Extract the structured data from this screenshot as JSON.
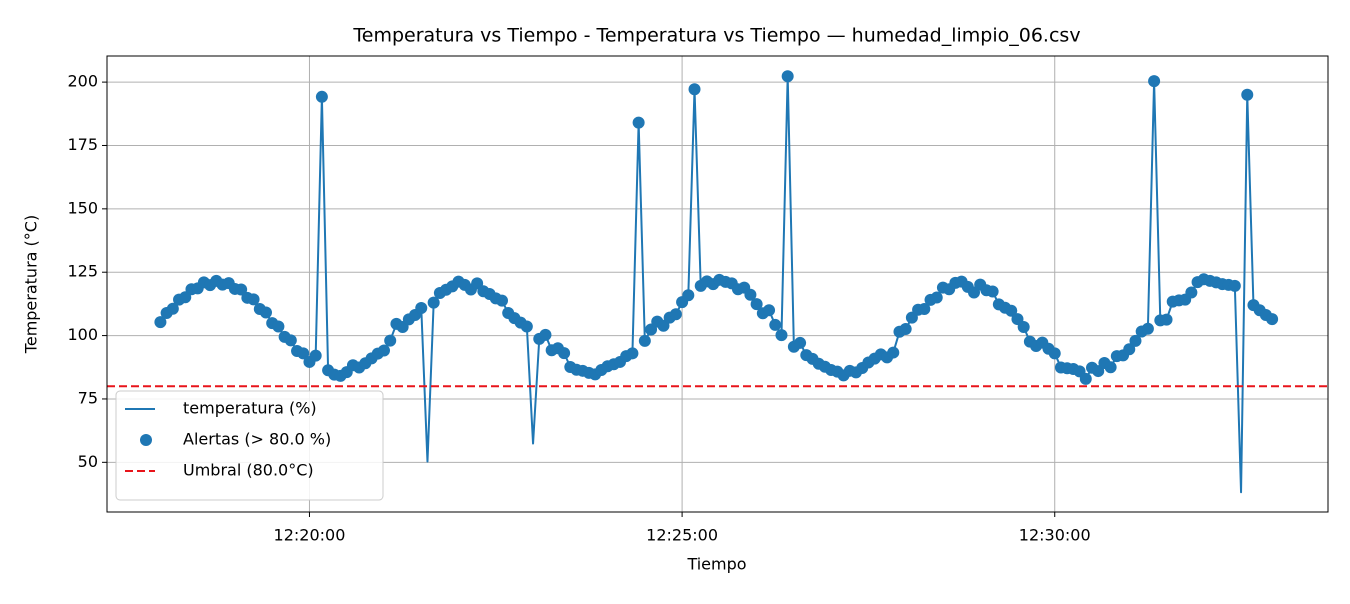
{
  "chart_data": {
    "type": "line",
    "title": "Temperatura vs Tiempo - Temperatura vs Tiempo — humedad_limpio_06.csv",
    "xlabel": "Tiempo",
    "ylabel": "Temperatura (°C)",
    "x": [
      "12:18:00",
      "12:18:05",
      "12:18:10",
      "12:18:15",
      "12:18:20",
      "12:18:25",
      "12:18:30",
      "12:18:35",
      "12:18:40",
      "12:18:45",
      "12:18:50",
      "12:18:55",
      "12:19:00",
      "12:19:05",
      "12:19:10",
      "12:19:15",
      "12:19:20",
      "12:19:25",
      "12:19:30",
      "12:19:35",
      "12:19:40",
      "12:19:45",
      "12:19:50",
      "12:19:55",
      "12:20:00",
      "12:20:05",
      "12:20:10",
      "12:20:15",
      "12:20:20",
      "12:20:25",
      "12:20:30",
      "12:20:35",
      "12:20:40",
      "12:20:45",
      "12:20:50",
      "12:20:55",
      "12:21:00",
      "12:21:05",
      "12:21:10",
      "12:21:15",
      "12:21:20",
      "12:21:25",
      "12:21:30",
      "12:21:35",
      "12:21:40",
      "12:21:45",
      "12:21:50",
      "12:21:55",
      "12:22:00",
      "12:22:05",
      "12:22:10",
      "12:22:15",
      "12:22:20",
      "12:22:25",
      "12:22:30",
      "12:22:35",
      "12:22:40",
      "12:22:45",
      "12:22:50",
      "12:22:55",
      "12:23:00",
      "12:23:05",
      "12:23:10",
      "12:23:15",
      "12:23:20",
      "12:23:25",
      "12:23:30",
      "12:23:35",
      "12:23:40",
      "12:23:45",
      "12:23:50",
      "12:23:55",
      "12:24:00",
      "12:24:05",
      "12:24:10",
      "12:24:15",
      "12:24:20",
      "12:24:25",
      "12:24:30",
      "12:24:35",
      "12:24:40",
      "12:24:45",
      "12:24:50",
      "12:24:55",
      "12:25:00",
      "12:25:05",
      "12:25:10",
      "12:25:15",
      "12:25:20",
      "12:25:25",
      "12:25:30",
      "12:25:35",
      "12:25:40",
      "12:25:45",
      "12:25:50",
      "12:25:55",
      "12:26:00",
      "12:26:05",
      "12:26:10",
      "12:26:15",
      "12:26:20",
      "12:26:25",
      "12:26:30",
      "12:26:35",
      "12:26:40",
      "12:26:45",
      "12:26:50",
      "12:26:55",
      "12:27:00",
      "12:27:05",
      "12:27:10",
      "12:27:15",
      "12:27:20",
      "12:27:25",
      "12:27:30",
      "12:27:35",
      "12:27:40",
      "12:27:45",
      "12:27:50",
      "12:27:55",
      "12:28:00",
      "12:28:05",
      "12:28:10",
      "12:28:15",
      "12:28:20",
      "12:28:25",
      "12:28:30",
      "12:28:35",
      "12:28:40",
      "12:28:45",
      "12:28:50",
      "12:28:55",
      "12:29:00",
      "12:29:05",
      "12:29:10",
      "12:29:15",
      "12:29:20",
      "12:29:25",
      "12:29:30",
      "12:29:35",
      "12:29:40",
      "12:29:45",
      "12:29:50",
      "12:29:55",
      "12:30:00",
      "12:30:05",
      "12:30:10",
      "12:30:15",
      "12:30:20",
      "12:30:25",
      "12:30:30",
      "12:30:35",
      "12:30:40",
      "12:30:45",
      "12:30:50",
      "12:30:55",
      "12:31:00",
      "12:31:05",
      "12:31:10",
      "12:31:15",
      "12:31:20",
      "12:31:25",
      "12:31:30",
      "12:31:35",
      "12:31:40",
      "12:31:45",
      "12:31:50",
      "12:31:55",
      "12:32:00",
      "12:32:05",
      "12:32:10",
      "12:32:15",
      "12:32:20",
      "12:32:25",
      "12:32:30",
      "12:32:35",
      "12:32:40",
      "12:32:45",
      "12:32:50",
      "12:32:55"
    ],
    "series": [
      {
        "name": "temperatura (%)",
        "color": "#1f77b4",
        "values": [
          105.3,
          108.9,
          110.6,
          114.2,
          115.1,
          118.3,
          118.6,
          121.0,
          119.9,
          121.6,
          120.1,
          120.7,
          118.4,
          118.2,
          114.9,
          114.3,
          110.5,
          109.1,
          104.9,
          103.6,
          99.5,
          98.1,
          93.9,
          93.0,
          89.6,
          92.1,
          194.2,
          86.3,
          84.6,
          84.1,
          85.6,
          88.3,
          87.4,
          89.1,
          91.0,
          92.9,
          94.1,
          98.0,
          104.6,
          103.4,
          106.4,
          108.1,
          110.9,
          50.3,
          113.0,
          116.8,
          118.1,
          119.4,
          121.3,
          120.0,
          118.2,
          120.6,
          117.5,
          116.4,
          114.7,
          113.8,
          108.9,
          106.9,
          105.1,
          103.6,
          57.4,
          98.7,
          100.3,
          94.2,
          95.0,
          93.1,
          87.6,
          86.5,
          86.1,
          85.3,
          84.7,
          86.4,
          87.9,
          88.7,
          89.6,
          91.9,
          93.0,
          184.0,
          97.9,
          102.4,
          105.5,
          103.9,
          107.1,
          108.4,
          113.2,
          115.9,
          197.2,
          119.6,
          121.4,
          120.3,
          122.0,
          121.2,
          120.6,
          118.3,
          118.9,
          116.1,
          112.4,
          108.8,
          110.0,
          104.2,
          100.2,
          202.3,
          95.6,
          97.1,
          92.3,
          90.8,
          88.9,
          87.7,
          86.4,
          85.8,
          84.3,
          86.1,
          85.5,
          87.2,
          89.4,
          90.9,
          92.6,
          91.4,
          93.3,
          101.5,
          102.6,
          107.1,
          110.2,
          110.5,
          114.1,
          115.0,
          118.9,
          118.3,
          120.8,
          121.3,
          119.2,
          117.0,
          120.1,
          117.9,
          117.4,
          112.3,
          111.0,
          109.8,
          106.5,
          103.4,
          97.6,
          95.9,
          97.2,
          94.8,
          93.0,
          87.4,
          87.1,
          86.8,
          85.9,
          82.9,
          87.3,
          86.0,
          89.2,
          87.5,
          91.9,
          92.2,
          94.6,
          97.9,
          101.6,
          102.7,
          200.4,
          106.0,
          106.3,
          113.4,
          113.9,
          114.2,
          117.0,
          121.1,
          122.2,
          121.6,
          121.0,
          120.3,
          120.0,
          119.6,
          38.2,
          195.0,
          112.0,
          110.0,
          108.1,
          106.5
        ]
      }
    ],
    "alerts": {
      "name": "Alertas (> 80.0 %)",
      "color": "#1f77b4"
    },
    "threshold": {
      "value": 80,
      "name": "Umbral (80.0°C)",
      "color": "#e8141a"
    },
    "xlim": [
      "12:17:17",
      "12:33:40"
    ],
    "xticks": [
      "12:20:00",
      "12:25:00",
      "12:30:00"
    ],
    "ylim": [
      30.4,
      210.3
    ],
    "yticks": [
      50,
      75,
      100,
      125,
      150,
      175,
      200
    ],
    "grid": true,
    "legend": "lower left"
  }
}
